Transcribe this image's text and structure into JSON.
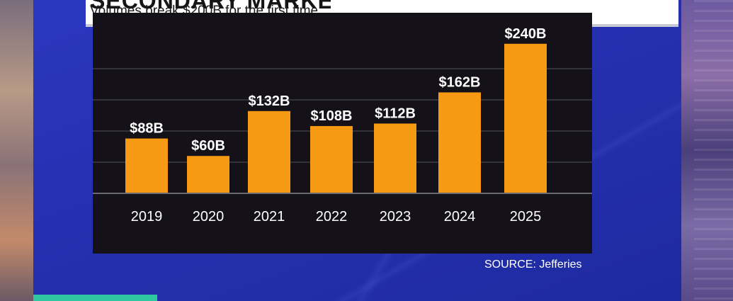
{
  "header": {
    "title": "SECONDARY MARKET",
    "subtitle": "Volumes break $200B for the first time"
  },
  "source": "SOURCE: Jefferies",
  "colors": {
    "bar": "#f59a12",
    "chart_bg": "#141218",
    "gridline": "#3c3a44",
    "panel": "#2530b0"
  },
  "chart_data": {
    "type": "bar",
    "title": "Volumes break $200B for the first time",
    "categories": [
      "2019",
      "2020",
      "2021",
      "2022",
      "2023",
      "2024",
      "2025"
    ],
    "values": [
      88,
      60,
      132,
      108,
      112,
      162,
      240
    ],
    "value_labels": [
      "$88B",
      "$60B",
      "$132B",
      "$108B",
      "$112B",
      "$162B",
      "$240B"
    ],
    "unit": "$B",
    "ylim": [
      0,
      250
    ],
    "grid": true,
    "xlabel": "",
    "ylabel": ""
  }
}
